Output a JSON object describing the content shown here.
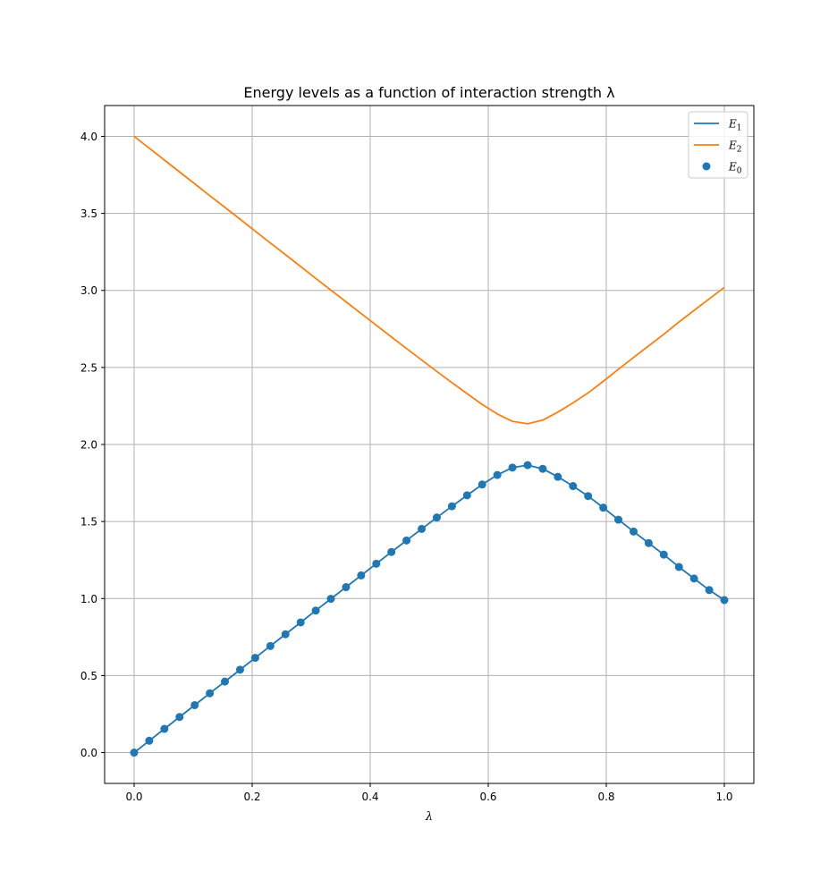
{
  "chart_data": {
    "type": "line",
    "title": "Energy levels as a function of interaction strength λ",
    "xlabel": "λ",
    "ylabel": "",
    "xlim": [
      -0.05,
      1.05
    ],
    "ylim": [
      -0.2,
      4.2
    ],
    "xticks": [
      0.0,
      0.2,
      0.4,
      0.6,
      0.8,
      1.0
    ],
    "xtick_labels": [
      "0.0",
      "0.2",
      "0.4",
      "0.6",
      "0.8",
      "1.0"
    ],
    "yticks": [
      0.0,
      0.5,
      1.0,
      1.5,
      2.0,
      2.5,
      3.0,
      3.5,
      4.0
    ],
    "ytick_labels": [
      "0.0",
      "0.5",
      "1.0",
      "1.5",
      "2.0",
      "2.5",
      "3.0",
      "3.5",
      "4.0"
    ],
    "grid": true,
    "legend_position": "top-right",
    "x": [
      0.0,
      0.0256,
      0.0513,
      0.0769,
      0.1026,
      0.1282,
      0.1538,
      0.1795,
      0.2051,
      0.2308,
      0.2564,
      0.2821,
      0.3077,
      0.3333,
      0.359,
      0.3846,
      0.4103,
      0.4359,
      0.4615,
      0.4872,
      0.5128,
      0.5385,
      0.5641,
      0.5897,
      0.6154,
      0.641,
      0.6667,
      0.6923,
      0.7179,
      0.7436,
      0.7692,
      0.7949,
      0.8205,
      0.8462,
      0.8718,
      0.8974,
      0.9231,
      0.9487,
      0.9744,
      1.0
    ],
    "series": [
      {
        "name": "E_1",
        "name_main": "E",
        "name_sub": "1",
        "kind": "line",
        "color": "#1f77b4",
        "values": [
          0.0,
          0.077,
          0.154,
          0.231,
          0.308,
          0.385,
          0.461,
          0.538,
          0.615,
          0.692,
          0.768,
          0.845,
          0.922,
          0.998,
          1.074,
          1.15,
          1.226,
          1.302,
          1.377,
          1.452,
          1.526,
          1.599,
          1.67,
          1.74,
          1.802,
          1.85,
          1.866,
          1.842,
          1.79,
          1.73,
          1.665,
          1.59,
          1.512,
          1.435,
          1.36,
          1.285,
          1.205,
          1.13,
          1.055,
          0.99
        ]
      },
      {
        "name": "E_2",
        "name_main": "E",
        "name_sub": "2",
        "kind": "line",
        "color": "#ff7f0e",
        "values": [
          4.0,
          3.923,
          3.846,
          3.769,
          3.692,
          3.615,
          3.539,
          3.462,
          3.385,
          3.308,
          3.232,
          3.155,
          3.078,
          3.002,
          2.926,
          2.85,
          2.774,
          2.698,
          2.623,
          2.548,
          2.474,
          2.401,
          2.33,
          2.26,
          2.198,
          2.15,
          2.134,
          2.158,
          2.21,
          2.27,
          2.335,
          2.41,
          2.488,
          2.565,
          2.64,
          2.715,
          2.795,
          2.87,
          2.945,
          3.02
        ]
      },
      {
        "name": "E_0",
        "name_main": "E",
        "name_sub": "0",
        "kind": "scatter",
        "color": "#1f77b4",
        "values": [
          0.0,
          0.077,
          0.154,
          0.231,
          0.308,
          0.385,
          0.461,
          0.538,
          0.615,
          0.692,
          0.768,
          0.845,
          0.922,
          0.998,
          1.074,
          1.15,
          1.226,
          1.302,
          1.377,
          1.452,
          1.526,
          1.599,
          1.67,
          1.74,
          1.802,
          1.85,
          1.866,
          1.842,
          1.79,
          1.73,
          1.665,
          1.59,
          1.512,
          1.435,
          1.36,
          1.285,
          1.205,
          1.13,
          1.055,
          0.99
        ]
      }
    ]
  }
}
